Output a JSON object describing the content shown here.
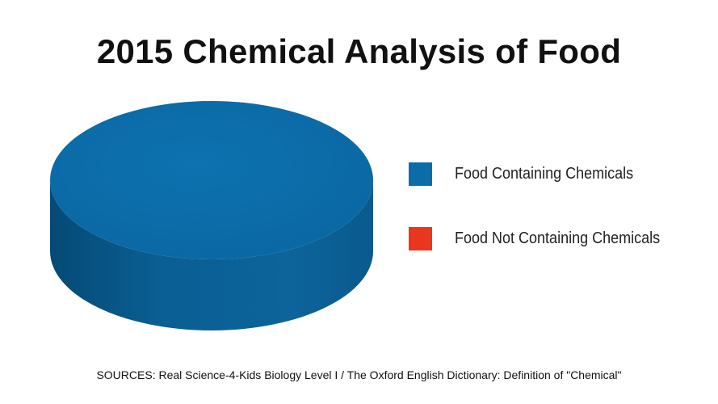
{
  "chart_data": {
    "type": "pie",
    "title": "2015 Chemical Analysis of Food",
    "style": "3d",
    "categories": [
      "Food Containing Chemicals",
      "Food Not Containing Chemicals"
    ],
    "values": [
      100,
      0
    ],
    "colors": [
      "#0a6ca8",
      "#e8361f"
    ],
    "legend_position": "right"
  },
  "footer": {
    "sources": "SOURCES: Real Science-4-Kids Biology Level I / The Oxford English Dictionary: Definition of \"Chemical\""
  }
}
